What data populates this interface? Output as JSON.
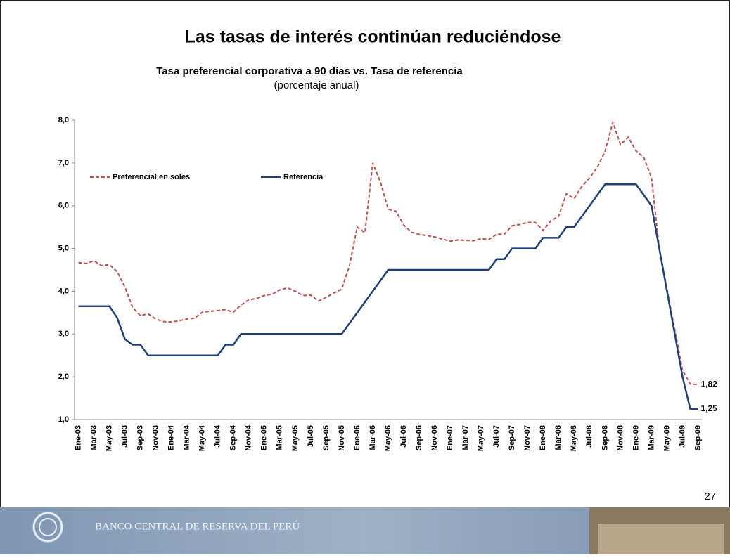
{
  "slide": {
    "title": "Las tasas de interés continúan reduciéndose",
    "page_number": "27",
    "footer": "BANCO CENTRAL DE RESERVA DEL PERÚ"
  },
  "chart_data": {
    "type": "line",
    "title": "Tasa preferencial corporativa a 90 días vs. Tasa de referencia",
    "subtitle": "(porcentaje anual)",
    "categories": [
      "Ene-03",
      null,
      "Mar-03",
      null,
      "May-03",
      null,
      "Jul-03",
      null,
      "Sep-03",
      null,
      "Nov-03",
      null,
      "Ene-04",
      null,
      "Mar-04",
      null,
      "May-04",
      null,
      "Jul-04",
      null,
      "Sep-04",
      null,
      "Nov-04",
      null,
      "Ene-05",
      null,
      "Mar-05",
      null,
      "May-05",
      null,
      "Jul-05",
      null,
      "Sep-05",
      null,
      "Nov-05",
      null,
      "Ene-06",
      null,
      "Mar-06",
      null,
      "May-06",
      null,
      "Jul-06",
      null,
      "Sep-06",
      null,
      "Nov-06",
      null,
      "Ene-07",
      null,
      "Mar-07",
      null,
      "May-07",
      null,
      "Jul-07",
      null,
      "Sep-07",
      null,
      "Nov-07",
      null,
      "Ene-08",
      null,
      "Mar-08",
      null,
      "May-08",
      null,
      "Jul-08",
      null,
      "Sep-08",
      null,
      "Nov-08",
      null,
      "Ene-09",
      null,
      "Mar-09",
      null,
      "May-09",
      null,
      "Jul-09",
      null,
      "Sep-09"
    ],
    "series": [
      {
        "name": "Preferencial en soles",
        "color": "#c0504d",
        "dashed": true,
        "values": [
          4.67,
          4.65,
          4.71,
          4.6,
          4.62,
          4.46,
          4.1,
          3.62,
          3.43,
          3.47,
          3.35,
          3.29,
          3.28,
          3.31,
          3.35,
          3.37,
          3.51,
          3.53,
          3.55,
          3.57,
          3.51,
          3.68,
          3.8,
          3.83,
          3.9,
          3.93,
          4.03,
          4.08,
          4.0,
          3.9,
          3.91,
          3.77,
          3.86,
          3.96,
          4.05,
          4.6,
          5.5,
          5.37,
          7.0,
          6.55,
          5.92,
          5.87,
          5.55,
          5.38,
          5.33,
          5.3,
          5.27,
          5.22,
          5.17,
          5.2,
          5.19,
          5.18,
          5.23,
          5.21,
          5.33,
          5.34,
          5.53,
          5.56,
          5.61,
          5.61,
          5.42,
          5.65,
          5.75,
          6.28,
          6.17,
          6.45,
          6.65,
          6.9,
          7.27,
          7.95,
          7.43,
          7.6,
          7.28,
          7.13,
          6.65,
          5.0,
          4.05,
          3.1,
          2.15,
          1.83,
          1.82
        ],
        "value_labels": [
          null,
          null,
          null,
          null,
          null,
          null,
          null,
          null,
          null,
          null,
          null,
          null,
          null,
          null,
          null,
          null,
          null,
          null,
          null,
          null,
          null,
          null,
          null,
          null,
          null,
          null,
          null,
          null,
          null,
          null,
          null,
          null,
          null,
          null,
          null,
          null,
          null,
          null,
          null,
          null,
          null,
          null,
          null,
          null,
          null,
          null,
          null,
          null,
          null,
          null,
          null,
          null,
          null,
          null,
          null,
          null,
          null,
          null,
          null,
          null,
          null,
          null,
          null,
          null,
          null,
          null,
          null,
          null,
          null,
          null,
          null,
          null,
          null,
          null,
          null,
          null,
          null,
          null,
          null,
          null,
          "1,82"
        ]
      },
      {
        "name": "Referencia",
        "color": "#1f3f7a",
        "dashed": false,
        "values": [
          3.65,
          3.65,
          3.65,
          3.65,
          3.65,
          3.38,
          2.88,
          2.75,
          2.75,
          2.5,
          2.5,
          2.5,
          2.5,
          2.5,
          2.5,
          2.5,
          2.5,
          2.5,
          2.5,
          2.75,
          2.75,
          3.0,
          3.0,
          3.0,
          3.0,
          3.0,
          3.0,
          3.0,
          3.0,
          3.0,
          3.0,
          3.0,
          3.0,
          3.0,
          3.0,
          3.25,
          3.5,
          3.75,
          4.0,
          4.25,
          4.5,
          4.5,
          4.5,
          4.5,
          4.5,
          4.5,
          4.5,
          4.5,
          4.5,
          4.5,
          4.5,
          4.5,
          4.5,
          4.5,
          4.75,
          4.75,
          5.0,
          5.0,
          5.0,
          5.0,
          5.25,
          5.25,
          5.25,
          5.5,
          5.5,
          5.75,
          6.0,
          6.25,
          6.5,
          6.5,
          6.5,
          6.5,
          6.5,
          6.25,
          6.0,
          5.0,
          4.0,
          3.0,
          2.0,
          1.25,
          1.25
        ],
        "value_labels": [
          null,
          null,
          null,
          null,
          null,
          null,
          null,
          null,
          null,
          null,
          null,
          null,
          null,
          null,
          null,
          null,
          null,
          null,
          null,
          null,
          null,
          null,
          null,
          null,
          null,
          null,
          null,
          null,
          null,
          null,
          null,
          null,
          null,
          null,
          null,
          null,
          null,
          null,
          null,
          null,
          null,
          null,
          null,
          null,
          null,
          null,
          null,
          null,
          null,
          null,
          null,
          null,
          null,
          null,
          null,
          null,
          null,
          null,
          null,
          null,
          null,
          null,
          null,
          null,
          null,
          null,
          null,
          null,
          null,
          null,
          null,
          null,
          null,
          null,
          null,
          null,
          null,
          null,
          null,
          null,
          "1,25"
        ]
      }
    ],
    "ylim": [
      1.0,
      8.0
    ],
    "yticks": [
      {
        "value": 1,
        "label": "1,0"
      },
      {
        "value": 2,
        "label": "2,0"
      },
      {
        "value": 3,
        "label": "3,0"
      },
      {
        "value": 4,
        "label": "4,0"
      },
      {
        "value": 5,
        "label": "5,0"
      },
      {
        "value": 6,
        "label": "6,0"
      },
      {
        "value": 7,
        "label": "7,0"
      },
      {
        "value": 8,
        "label": "8,0"
      }
    ],
    "grid": false,
    "legend": "upper left"
  }
}
